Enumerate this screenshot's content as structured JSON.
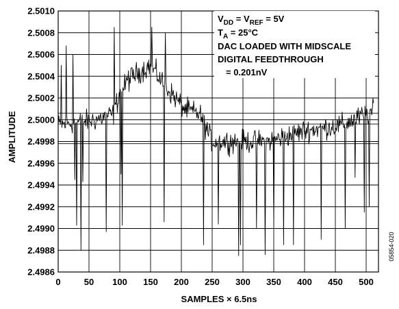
{
  "chart_data": {
    "type": "line",
    "title": "",
    "xlabel": "SAMPLES × 6.5ns",
    "ylabel": "AMPLITUDE",
    "xlim": [
      0,
      520
    ],
    "ylim": [
      2.4986,
      2.501
    ],
    "x_ticks": [
      "0",
      "50",
      "100",
      "150",
      "200",
      "250",
      "300",
      "350",
      "400",
      "450",
      "500"
    ],
    "y_ticks": [
      "2.4986",
      "2.4988",
      "2.4990",
      "2.4992",
      "2.4994",
      "2.4996",
      "2.4998",
      "2.5000",
      "2.5002",
      "2.5004",
      "2.5006",
      "2.5008",
      "2.5010"
    ],
    "grid": true,
    "reference_lines": [
      2.50006,
      2.49996,
      2.49978
    ],
    "annotation": {
      "line1": {
        "a": "V",
        "a_sub": "DD",
        "mid": " = V",
        "b_sub": "REF",
        "end": " = 5V"
      },
      "line2": {
        "a": "T",
        "a_sub": "A",
        "end": " = 25°C"
      },
      "line3": "DAC LOADED WITH MIDSCALE",
      "line4": "DIGITAL FEEDTHROUGH",
      "line5": "= 0.201nV"
    },
    "figure_code": "05854-020",
    "series": [
      {
        "color": "#000000",
        "baseline": [
          [
            0,
            2.49995
          ],
          [
            60,
            2.5
          ],
          [
            90,
            2.50005
          ],
          [
            100,
            2.50025
          ],
          [
            120,
            2.5004
          ],
          [
            150,
            2.5005
          ],
          [
            175,
            2.5003
          ],
          [
            205,
            2.5001
          ],
          [
            230,
            2.50005
          ],
          [
            250,
            2.4998
          ],
          [
            300,
            2.4998
          ],
          [
            340,
            2.4998
          ],
          [
            370,
            2.49985
          ],
          [
            400,
            2.4999
          ],
          [
            460,
            2.49995
          ],
          [
            512,
            2.50008
          ]
        ],
        "noise_amplitude": 0.00015,
        "spikes": [
          [
            5,
            2.5005
          ],
          [
            13,
            2.50068
          ],
          [
            24,
            2.5006
          ],
          [
            27,
            2.49945
          ],
          [
            30,
            2.49903
          ],
          [
            37,
            2.4988
          ],
          [
            40,
            2.49943
          ],
          [
            78,
            2.49897
          ],
          [
            91,
            2.50085
          ],
          [
            102,
            2.4995
          ],
          [
            104,
            2.49903
          ],
          [
            114,
            2.50045
          ],
          [
            152,
            2.50085
          ],
          [
            172,
            2.49906
          ],
          [
            174,
            2.5008
          ],
          [
            236,
            2.49885
          ],
          [
            260,
            2.49904
          ],
          [
            293,
            2.49875
          ],
          [
            296,
            2.49885
          ],
          [
            322,
            2.499
          ],
          [
            336,
            2.49876
          ],
          [
            350,
            2.49903
          ],
          [
            366,
            2.49885
          ],
          [
            382,
            2.49885
          ],
          [
            427,
            2.4989
          ],
          [
            466,
            2.499
          ],
          [
            482,
            2.49947
          ],
          [
            497,
            2.49915
          ],
          [
            505,
            2.4992
          ]
        ]
      }
    ]
  }
}
